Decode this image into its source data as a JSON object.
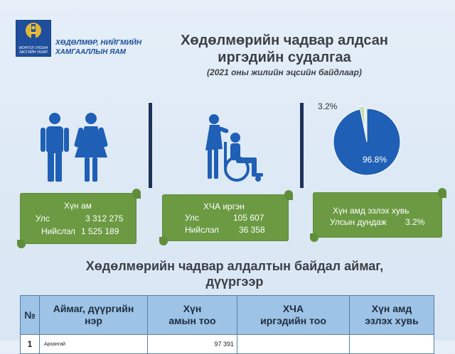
{
  "header": {
    "logo_text": "МОНГОЛ УЛСЫН ЗАСГИЙН ГАЗАР",
    "ministry_line1": "ХӨДӨЛМӨР, НИЙГМИЙН",
    "ministry_line2": "ХАМГААЛЛЫН ЯАМ",
    "title_line1": "Хөдөлмөрийн чадвар алдсан",
    "title_line2": "иргэдийн судалгаа",
    "subtitle": "(2021 оны жилийн эцсийн байдлаар)"
  },
  "population": {
    "title": "Хүн ам",
    "rows": [
      {
        "label": "Улс",
        "value": "3 312 275"
      },
      {
        "label": "Нийслэл",
        "value": "1 525 189"
      }
    ]
  },
  "disabled": {
    "title": "ХЧА иргэн",
    "rows": [
      {
        "label": "Улс",
        "value": "105 607"
      },
      {
        "label": "Нийслэл",
        "value": "36 358"
      }
    ]
  },
  "share": {
    "line1": "Хүн амд эзлэх хувь",
    "line2_label": "Улсын дундаж",
    "line2_value": "3.2%"
  },
  "chart_data": {
    "type": "pie",
    "slices": [
      {
        "label": "3.2%",
        "value": 3.2,
        "color": "#c5e0b4"
      },
      {
        "label": "96.8%",
        "value": 96.8,
        "color": "#1f5fb5"
      }
    ]
  },
  "section": {
    "title_line1": "Хөдөлмөрийн чадвар алдалтын байдал аймаг,",
    "title_line2": "дүүргээр"
  },
  "table": {
    "headers": [
      {
        "line1": "№",
        "line2": ""
      },
      {
        "line1": "Аймаг, дүүргийн",
        "line2": "нэр"
      },
      {
        "line1": "Хүн",
        "line2": "амын тоо"
      },
      {
        "line1": "ХЧА",
        "line2": "иргэдийн тоо"
      },
      {
        "line1": "Хүн амд",
        "line2": "эзлэх хувь"
      }
    ],
    "first_row": {
      "no": "1",
      "name": "Архангай",
      "population": "97 391"
    }
  },
  "colors": {
    "accent_blue": "#1f5fb5",
    "box_green": "#6b9a43",
    "table_header": "#9dc3e6",
    "dark_divider": "#1d3159"
  }
}
